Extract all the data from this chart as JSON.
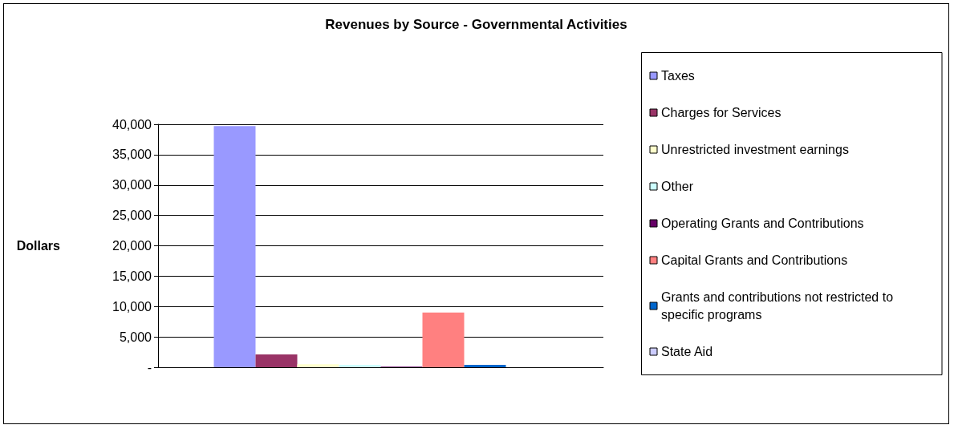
{
  "chart_data": {
    "type": "bar",
    "title": "Revenues by Source - Governmental Activities",
    "ylabel": "Dollars",
    "categories": [
      null
    ],
    "series": [
      {
        "name": "Taxes",
        "color": "#9999ff",
        "values": [
          39700
        ]
      },
      {
        "name": "Charges for Services",
        "color": "#993366",
        "values": [
          2100
        ]
      },
      {
        "name": "Unrestricted investment earnings",
        "color": "#ffffcc",
        "values": [
          500
        ]
      },
      {
        "name": "Other",
        "color": "#ccffff",
        "values": [
          400
        ]
      },
      {
        "name": "Operating Grants and Contributions",
        "color": "#660066",
        "values": [
          100
        ]
      },
      {
        "name": "Capital Grants and Contributions",
        "color": "#ff8080",
        "values": [
          9000
        ]
      },
      {
        "name": "Grants and contributions not restricted to specific programs",
        "color": "#0066cc",
        "values": [
          400
        ]
      },
      {
        "name": "State Aid",
        "color": "#ccccff",
        "values": [
          0
        ]
      }
    ],
    "ylim": [
      0,
      40000
    ],
    "yticks": [
      {
        "value": 0,
        "label": "-"
      },
      {
        "value": 5000,
        "label": "5,000"
      },
      {
        "value": 10000,
        "label": "10,000"
      },
      {
        "value": 15000,
        "label": "15,000"
      },
      {
        "value": 20000,
        "label": "20,000"
      },
      {
        "value": 25000,
        "label": "25,000"
      },
      {
        "value": 30000,
        "label": "30,000"
      },
      {
        "value": 35000,
        "label": "35,000"
      },
      {
        "value": 40000,
        "label": "40,000"
      }
    ],
    "grid": "y",
    "legend": "right"
  }
}
